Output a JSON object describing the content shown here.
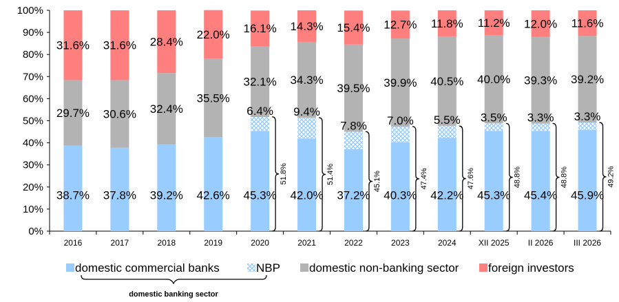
{
  "chart_data": {
    "type": "bar",
    "stacked": true,
    "categories": [
      "2016",
      "2017",
      "2018",
      "2019",
      "2020",
      "2021",
      "2022",
      "2023",
      "2024",
      "XII 2025",
      "II 2026",
      "III 2026"
    ],
    "y_ticks": [
      "0%",
      "10%",
      "20%",
      "30%",
      "40%",
      "50%",
      "60%",
      "70%",
      "80%",
      "90%",
      "100%"
    ],
    "ylim": [
      0,
      100
    ],
    "grid": false,
    "legend_position": "bottom",
    "series": [
      {
        "name": "domestic commercial banks",
        "color": "#99CCFF",
        "pattern": "solid",
        "values": [
          38.7,
          37.8,
          39.2,
          42.6,
          45.3,
          42.0,
          37.2,
          40.3,
          42.2,
          45.3,
          45.4,
          45.9
        ],
        "labels": [
          "38.7%",
          "37.8%",
          "39.2%",
          "42.6%",
          "45.3%",
          "42.0%",
          "37.2%",
          "40.3%",
          "42.2%",
          "45.3%",
          "45.4%",
          "45.9%"
        ]
      },
      {
        "name": "NBP",
        "color": "#99CCFF",
        "pattern": "crosshatch",
        "values": [
          0,
          0,
          0,
          0,
          6.4,
          9.4,
          7.8,
          7.0,
          5.5,
          3.5,
          3.3,
          3.3
        ],
        "labels": [
          "",
          "",
          "",
          "",
          "6.4%",
          "9.4%",
          "7.8%",
          "7.0%",
          "5.5%",
          "3.5%",
          "3.3%",
          "3.3%"
        ]
      },
      {
        "name": "domestic non-banking sector",
        "color": "#B3B3B3",
        "pattern": "solid",
        "values": [
          29.7,
          30.6,
          32.4,
          35.5,
          32.1,
          34.3,
          39.5,
          39.9,
          40.5,
          40.0,
          39.3,
          39.2
        ],
        "labels": [
          "29.7%",
          "30.6%",
          "32.4%",
          "35.5%",
          "32.1%",
          "34.3%",
          "39.5%",
          "39.9%",
          "40.5%",
          "40.0%",
          "39.3%",
          "39.2%"
        ]
      },
      {
        "name": "foreign investors",
        "color": "#FF7F7F",
        "pattern": "solid",
        "values": [
          31.6,
          31.6,
          28.4,
          22.0,
          16.1,
          14.3,
          15.4,
          12.7,
          11.8,
          11.2,
          12.0,
          11.6
        ],
        "labels": [
          "31.6%",
          "31.6%",
          "28.4%",
          "22.0%",
          "16.1%",
          "14.3%",
          "15.4%",
          "12.7%",
          "11.8%",
          "11.2%",
          "12.0%",
          "11.6%"
        ]
      }
    ],
    "bracket_annotations": [
      {
        "category": "2020",
        "value": 51.8,
        "label": "51.8%"
      },
      {
        "category": "2021",
        "value": 51.4,
        "label": "51.4%"
      },
      {
        "category": "2022",
        "value": 45.1,
        "label": "45.1%"
      },
      {
        "category": "2023",
        "value": 47.4,
        "label": "47.4%"
      },
      {
        "category": "2024",
        "value": 47.6,
        "label": "47.6%"
      },
      {
        "category": "XII 2025",
        "value": 48.8,
        "label": "48.8%"
      },
      {
        "category": "II 2026",
        "value": 48.8,
        "label": "48.8%"
      },
      {
        "category": "III 2026",
        "value": 49.2,
        "label": "49.2%"
      }
    ],
    "legend_group_label": "domestic banking sector"
  }
}
